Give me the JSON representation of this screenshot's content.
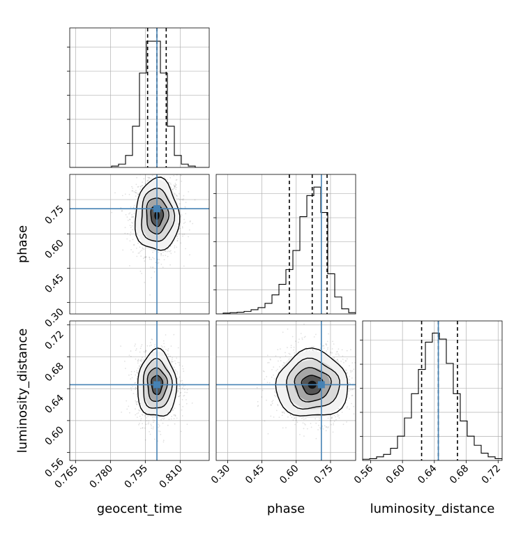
{
  "chart_data": {
    "type": "corner",
    "parameters": [
      "geocent_time",
      "phase",
      "luminosity_distance"
    ],
    "truths": {
      "geocent_time": 0.8,
      "phase": 0.71,
      "luminosity_distance": 0.645
    },
    "truth_color": "#4682b4",
    "grid": true,
    "axes": {
      "geocent_time": {
        "label": "geocent_time",
        "range": [
          0.7625,
          0.8225
        ],
        "ticks": [
          "0.765",
          "0.780",
          "0.795",
          "0.810"
        ]
      },
      "phase": {
        "label": "phase",
        "range": [
          0.25,
          0.86
        ],
        "ticks": [
          "0.30",
          "0.45",
          "0.60",
          "0.75"
        ]
      },
      "luminosity_distance": {
        "label": "luminosity_distance",
        "range": [
          0.55,
          0.725
        ],
        "ticks": [
          "0.56",
          "0.60",
          "0.64",
          "0.68",
          "0.72"
        ]
      }
    },
    "histograms": [
      {
        "parameter": "geocent_time",
        "edges": [
          0.7625,
          0.7655,
          0.7685,
          0.7715,
          0.7745,
          0.7775,
          0.7805,
          0.7835,
          0.7865,
          0.7895,
          0.7925,
          0.7955,
          0.7985,
          0.8015,
          0.8045,
          0.8075,
          0.8105,
          0.8135,
          0.8165,
          0.8195,
          0.8225
        ],
        "counts": [
          0,
          0,
          0,
          0,
          0,
          0,
          2,
          5,
          18,
          62,
          142,
          190,
          190,
          142,
          62,
          18,
          5,
          2,
          0,
          0
        ],
        "quantiles": [
          0.796,
          0.8,
          0.804
        ],
        "ymax": 210
      },
      {
        "parameter": "phase",
        "edges": [
          0.25,
          0.2805,
          0.311,
          0.3415,
          0.372,
          0.4025,
          0.433,
          0.4635,
          0.494,
          0.5245,
          0.555,
          0.5855,
          0.616,
          0.6465,
          0.677,
          0.7075,
          0.738,
          0.7685,
          0.799,
          0.8295,
          0.86
        ],
        "counts": [
          0,
          2,
          3,
          4,
          6,
          10,
          15,
          25,
          45,
          70,
          105,
          150,
          230,
          280,
          300,
          240,
          95,
          40,
          12,
          3
        ],
        "quantiles": [
          0.57,
          0.67,
          0.735
        ],
        "ymax": 330
      },
      {
        "parameter": "luminosity_distance",
        "edges": [
          0.55,
          0.55875,
          0.5675,
          0.57625,
          0.585,
          0.59375,
          0.6025,
          0.61125,
          0.62,
          0.62875,
          0.6375,
          0.64625,
          0.655,
          0.66375,
          0.6725,
          0.68125,
          0.69,
          0.69875,
          0.7075,
          0.71625,
          0.725
        ],
        "counts": [
          2,
          3,
          6,
          10,
          20,
          40,
          70,
          110,
          150,
          195,
          210,
          200,
          160,
          110,
          65,
          40,
          25,
          12,
          6,
          3
        ],
        "quantiles": [
          0.624,
          0.645,
          0.669
        ],
        "ymax": 230
      }
    ],
    "density_2d": [
      {
        "x": "geocent_time",
        "y": "phase",
        "center": [
          0.8,
          0.68
        ],
        "spread": [
          0.0045,
          0.075
        ]
      },
      {
        "x": "geocent_time",
        "y": "luminosity_distance",
        "center": [
          0.8,
          0.645
        ],
        "spread": [
          0.004,
          0.02
        ]
      },
      {
        "x": "phase",
        "y": "luminosity_distance",
        "center": [
          0.67,
          0.645
        ],
        "spread": [
          0.075,
          0.02
        ]
      }
    ]
  }
}
